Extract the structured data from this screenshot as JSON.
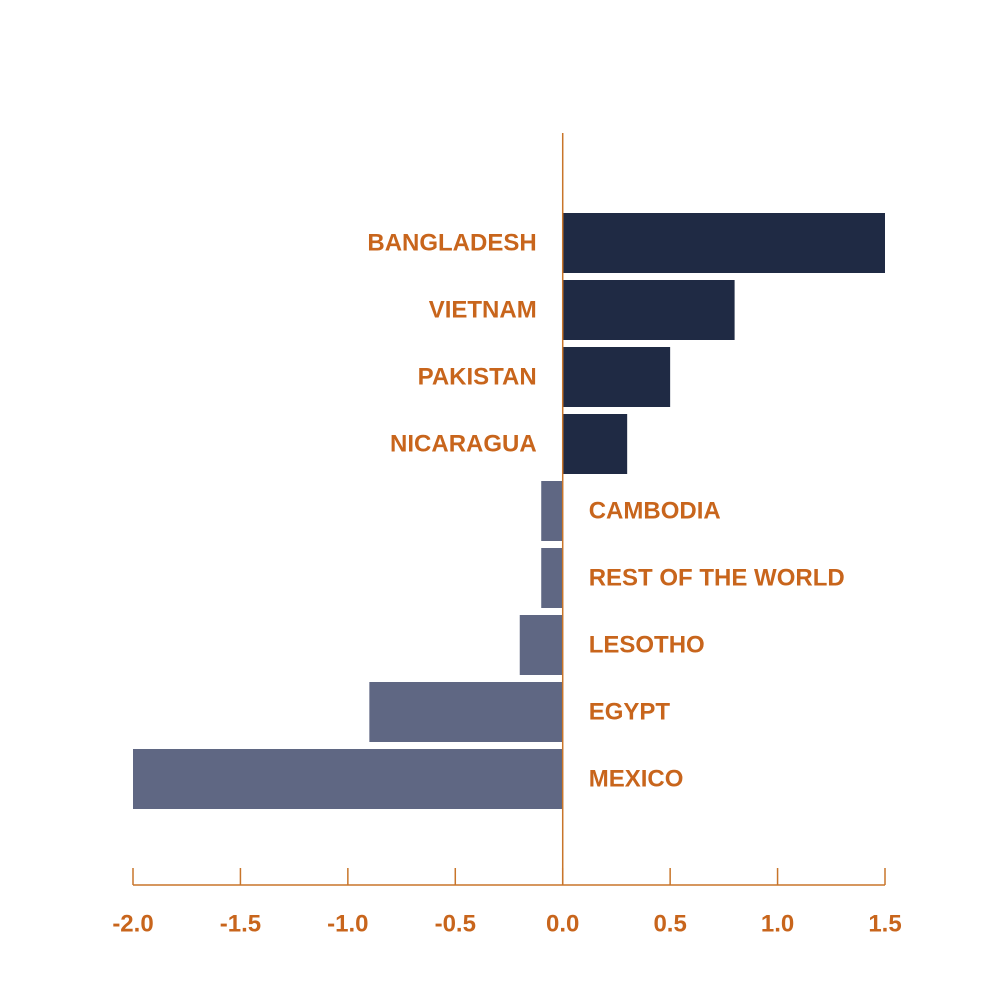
{
  "chart_data": {
    "type": "bar",
    "orientation": "horizontal",
    "categories": [
      "BANGLADESH",
      "VIETNAM",
      "PAKISTAN",
      "NICARAGUA",
      "CAMBODIA",
      "REST OF THE WORLD",
      "LESOTHO",
      "EGYPT",
      "MEXICO"
    ],
    "values": [
      1.5,
      0.8,
      0.5,
      0.3,
      -0.1,
      -0.1,
      -0.2,
      -0.9,
      -2.0
    ],
    "xlim": [
      -2.0,
      1.5
    ],
    "xticks": [
      -2.0,
      -1.5,
      -1.0,
      -0.5,
      0.0,
      0.5,
      1.0,
      1.5
    ],
    "xtick_labels": [
      "-2.0",
      "-1.5",
      "-1.0",
      "-0.5",
      "0.0",
      "0.5",
      "1.0",
      "1.5"
    ],
    "grid": false,
    "colors": {
      "positive": "#1f2a44",
      "negative": "#5f6783",
      "axis": "#c8752a",
      "label": "#c8651c"
    }
  }
}
